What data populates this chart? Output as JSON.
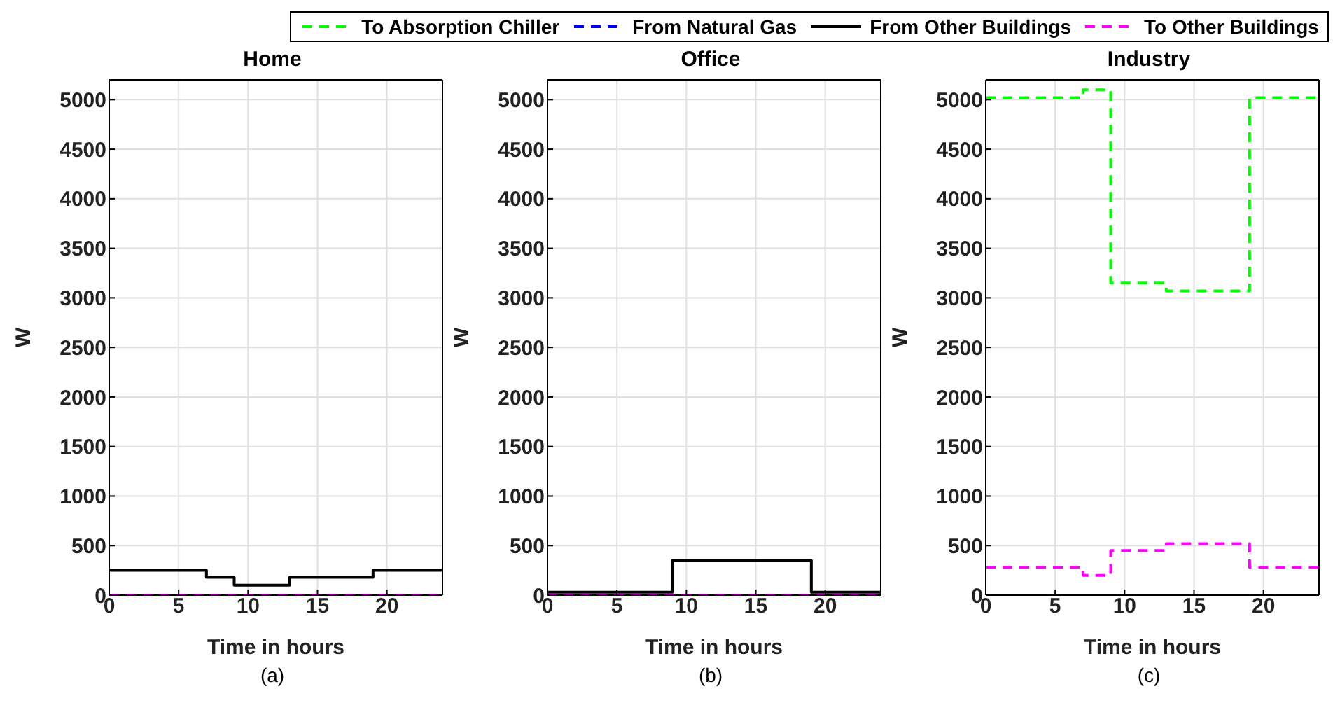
{
  "chart_data": [
    {
      "type": "step",
      "title": "Home",
      "xlabel": "Time in hours",
      "ylabel": "W",
      "annotations": [
        "(a)"
      ],
      "xlim": [
        0,
        24
      ],
      "xticks": [
        0,
        5,
        10,
        15,
        20
      ],
      "ylim": [
        0,
        5200
      ],
      "yticks": [
        0,
        500,
        1000,
        1500,
        2000,
        2500,
        3000,
        3500,
        4000,
        4500,
        5000
      ],
      "grid": true,
      "legend": "top",
      "series": [
        {
          "name": "To Absorption Chiller",
          "color": "#00ff00",
          "line_style": "dashed",
          "values": [
            null
          ]
        },
        {
          "name": "From Natural Gas",
          "color": "#0000ff",
          "line_style": "dashed",
          "values": [
            null
          ]
        },
        {
          "name": "From Other Buildings",
          "color": "#000000",
          "line_style": "solid",
          "x": [
            0,
            7,
            9,
            13,
            19,
            24
          ],
          "values": [
            250,
            180,
            100,
            180,
            250,
            250
          ]
        },
        {
          "name": "To Other Buildings",
          "color": "#ff00ff",
          "line_style": "dashed",
          "x": [
            0,
            24
          ],
          "values": [
            0,
            0
          ]
        }
      ]
    },
    {
      "type": "step",
      "title": "Office",
      "xlabel": "Time in hours",
      "ylabel": "W",
      "annotations": [
        "(b)"
      ],
      "xlim": [
        0,
        24
      ],
      "xticks": [
        0,
        5,
        10,
        15,
        20
      ],
      "ylim": [
        0,
        5200
      ],
      "yticks": [
        0,
        500,
        1000,
        1500,
        2000,
        2500,
        3000,
        3500,
        4000,
        4500,
        5000
      ],
      "grid": true,
      "series": [
        {
          "color": "#00ff00",
          "line_style": "dashed",
          "values": [
            null
          ]
        },
        {
          "color": "#0000ff",
          "line_style": "dashed",
          "values": [
            null
          ]
        },
        {
          "color": "#000000",
          "line_style": "solid",
          "x": [
            0,
            9,
            19,
            24
          ],
          "values": [
            30,
            350,
            30,
            30
          ]
        },
        {
          "color": "#ff00ff",
          "line_style": "dashed",
          "x": [
            0,
            24
          ],
          "values": [
            0,
            0
          ]
        }
      ]
    },
    {
      "type": "step",
      "title": "Industry",
      "xlabel": "Time in hours",
      "ylabel": "W",
      "annotations": [
        "(c)"
      ],
      "xlim": [
        0,
        24
      ],
      "xticks": [
        0,
        5,
        10,
        15,
        20
      ],
      "ylim": [
        0,
        5200
      ],
      "yticks": [
        0,
        500,
        1000,
        1500,
        2000,
        2500,
        3000,
        3500,
        4000,
        4500,
        5000
      ],
      "grid": true,
      "series": [
        {
          "color": "#00ff00",
          "line_style": "dashed",
          "x": [
            0,
            7,
            9,
            13,
            19,
            24
          ],
          "values": [
            5020,
            5100,
            3150,
            3070,
            5020,
            5020
          ]
        },
        {
          "color": "#0000ff",
          "line_style": "dashed",
          "values": [
            null
          ]
        },
        {
          "color": "#000000",
          "line_style": "solid",
          "x": [
            0,
            24
          ],
          "values": [
            0,
            0
          ]
        },
        {
          "color": "#ff00ff",
          "line_style": "dashed",
          "x": [
            0,
            7,
            9,
            13,
            19,
            24
          ],
          "values": [
            280,
            200,
            450,
            520,
            280,
            280
          ]
        }
      ]
    }
  ]
}
